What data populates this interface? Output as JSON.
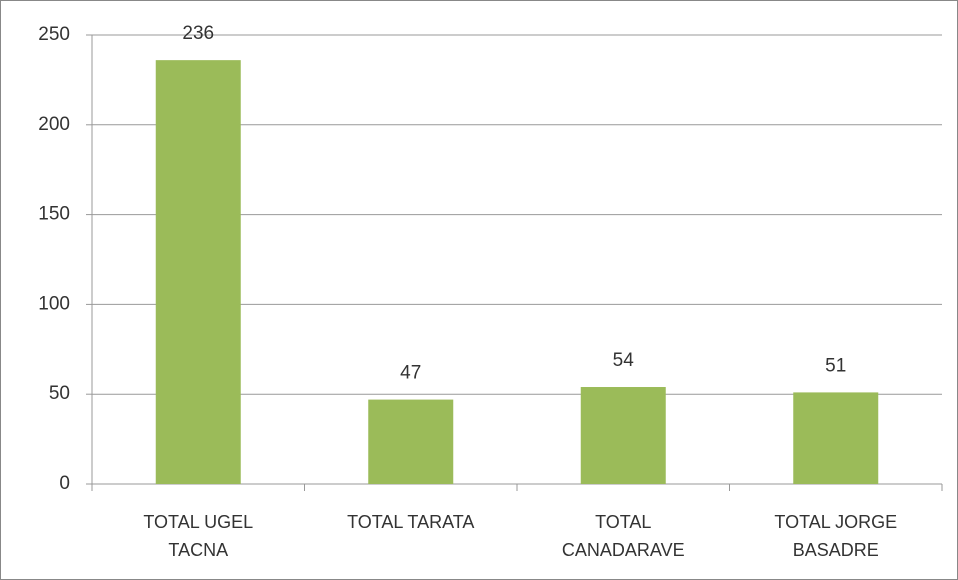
{
  "chart_data": {
    "type": "bar",
    "categories": [
      "TOTAL UGEL TACNA",
      "TOTAL TARATA",
      "TOTAL CANADARAVE",
      "TOTAL JORGE BASADRE"
    ],
    "values": [
      236,
      47,
      54,
      51
    ],
    "color": "#9bbb59",
    "ylim": [
      0,
      250
    ],
    "yticks": [
      0,
      50,
      100,
      150,
      200,
      250
    ],
    "grid": true
  }
}
